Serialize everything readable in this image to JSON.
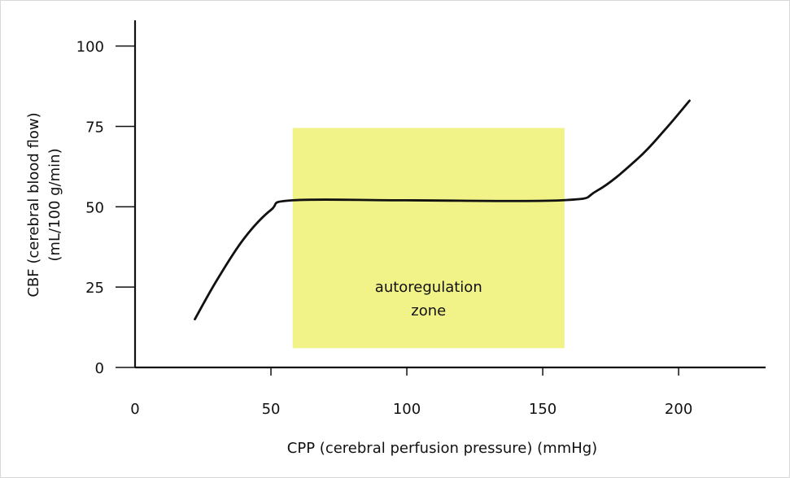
{
  "chart_data": {
    "type": "line",
    "xlabel": "CPP (cerebral perfusion pressure) (mmHg)",
    "ylabel_lines": [
      "CBF (cerebral blood flow)",
      "(mL/100 g/min)"
    ],
    "xlim": [
      0,
      232
    ],
    "ylim": [
      0,
      108
    ],
    "xticks": [
      0,
      50,
      100,
      150,
      200
    ],
    "yticks": [
      0,
      25,
      50,
      75,
      100
    ],
    "grid": false,
    "series": [
      {
        "x": [
          22,
          30,
          40,
          50,
          58,
          100,
          157,
          170,
          185,
          195,
          204
        ],
        "y": [
          15,
          27,
          40,
          49,
          52,
          52,
          52,
          55,
          65,
          74,
          83
        ]
      }
    ],
    "annotations": [
      {
        "type": "shaded_region",
        "x": [
          58,
          158
        ],
        "y": [
          6,
          74.5
        ],
        "color": "#f1f287",
        "text_lines": [
          "autoregulation",
          "zone"
        ]
      }
    ]
  },
  "colors": {
    "axis": "#111111",
    "line": "#111111",
    "zone": "#f1f287",
    "text": "#111111"
  }
}
